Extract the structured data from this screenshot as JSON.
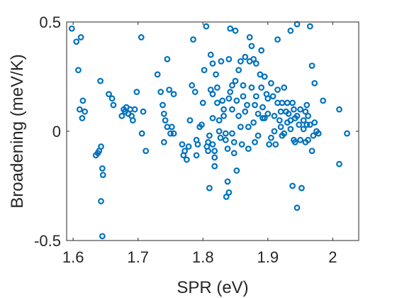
{
  "chart_data": {
    "type": "scatter",
    "xlabel": "SPR (eV)",
    "ylabel": "Broadening (meV/K)",
    "xlim": [
      1.59,
      2.04
    ],
    "ylim": [
      -0.5,
      0.5
    ],
    "x_ticks": [
      1.6,
      1.7,
      1.8,
      1.9,
      2.0
    ],
    "x_tick_labels": [
      "1.6",
      "1.7",
      "1.8",
      "1.9",
      "2"
    ],
    "y_ticks": [
      -0.5,
      0,
      0.5
    ],
    "y_tick_labels": [
      "-0.5",
      "0",
      "0.5"
    ],
    "grid": false,
    "box": true,
    "marker": "circle-open",
    "marker_color": "#0072bd",
    "axis_color": "#262626",
    "points": [
      [
        1.598,
        0.47
      ],
      [
        1.605,
        0.41
      ],
      [
        1.612,
        0.43
      ],
      [
        1.608,
        0.28
      ],
      [
        1.615,
        0.14
      ],
      [
        1.61,
        0.1
      ],
      [
        1.614,
        0.06
      ],
      [
        1.618,
        0.09
      ],
      [
        1.635,
        -0.11
      ],
      [
        1.638,
        -0.1
      ],
      [
        1.64,
        -0.09
      ],
      [
        1.643,
        -0.07
      ],
      [
        1.642,
        0.23
      ],
      [
        1.645,
        -0.17
      ],
      [
        1.646,
        -0.2
      ],
      [
        1.643,
        -0.32
      ],
      [
        1.645,
        -0.48
      ],
      [
        1.655,
        0.17
      ],
      [
        1.66,
        0.15
      ],
      [
        1.662,
        0.12
      ],
      [
        1.675,
        0.07
      ],
      [
        1.678,
        0.1
      ],
      [
        1.68,
        0.09
      ],
      [
        1.682,
        0.11
      ],
      [
        1.685,
        0.08
      ],
      [
        1.688,
        0.1
      ],
      [
        1.69,
        0.07
      ],
      [
        1.692,
        0.05
      ],
      [
        1.695,
        0.1
      ],
      [
        1.698,
        0.18
      ],
      [
        1.705,
        0.43
      ],
      [
        1.708,
        0.09
      ],
      [
        1.706,
        -0.01
      ],
      [
        1.712,
        -0.09
      ],
      [
        1.73,
        0.26
      ],
      [
        1.735,
        0.18
      ],
      [
        1.738,
        0.12
      ],
      [
        1.74,
        0.08
      ],
      [
        1.742,
        0.05
      ],
      [
        1.745,
        0.33
      ],
      [
        1.74,
        -0.05
      ],
      [
        1.748,
        0.19
      ],
      [
        1.745,
        0.02
      ],
      [
        1.752,
        0.02
      ],
      [
        1.755,
        0.17
      ],
      [
        1.75,
        -0.01
      ],
      [
        1.755,
        -0.01
      ],
      [
        1.768,
        -0.06
      ],
      [
        1.772,
        -0.09
      ],
      [
        1.77,
        -0.11
      ],
      [
        1.775,
        -0.13
      ],
      [
        1.778,
        -0.07
      ],
      [
        1.78,
        0.05
      ],
      [
        1.783,
        0.21
      ],
      [
        1.785,
        0.42
      ],
      [
        1.788,
        0.18
      ],
      [
        1.79,
        -0.04
      ],
      [
        1.792,
        -0.06
      ],
      [
        1.79,
        -0.11
      ],
      [
        1.795,
        0.02
      ],
      [
        1.798,
        0.03
      ],
      [
        1.8,
        0.13
      ],
      [
        1.802,
        0.28
      ],
      [
        1.805,
        0.48
      ],
      [
        1.806,
        -0.07
      ],
      [
        1.808,
        -0.09
      ],
      [
        1.808,
        -0.05
      ],
      [
        1.81,
        -0.02
      ],
      [
        1.81,
        -0.26
      ],
      [
        1.812,
        0.19
      ],
      [
        1.812,
        0.35
      ],
      [
        1.815,
        0.31
      ],
      [
        1.815,
        0.17
      ],
      [
        1.815,
        0.06
      ],
      [
        1.815,
        -0.06
      ],
      [
        1.818,
        -0.09
      ],
      [
        1.818,
        -0.12
      ],
      [
        1.818,
        -0.16
      ],
      [
        1.82,
        0.26
      ],
      [
        1.822,
        0.2
      ],
      [
        1.822,
        0.13
      ],
      [
        1.825,
        0.05
      ],
      [
        1.825,
        0.0
      ],
      [
        1.827,
        -0.03
      ],
      [
        1.828,
        0.32
      ],
      [
        1.83,
        0.14
      ],
      [
        1.832,
        0.1
      ],
      [
        1.832,
        0.07
      ],
      [
        1.835,
        -0.01
      ],
      [
        1.835,
        -0.04
      ],
      [
        1.838,
        -0.08
      ],
      [
        1.836,
        -0.3
      ],
      [
        1.838,
        -0.23
      ],
      [
        1.84,
        0.15
      ],
      [
        1.84,
        -0.28
      ],
      [
        1.84,
        0.33
      ],
      [
        1.842,
        0.47
      ],
      [
        1.842,
        0.18
      ],
      [
        1.845,
        0.21
      ],
      [
        1.845,
        0.1
      ],
      [
        1.845,
        -0.01
      ],
      [
        1.848,
        -0.05
      ],
      [
        1.848,
        -0.1
      ],
      [
        1.85,
        0.46
      ],
      [
        1.85,
        0.23
      ],
      [
        1.852,
        0.14
      ],
      [
        1.852,
        -0.18
      ],
      [
        1.855,
        0.28
      ],
      [
        1.855,
        0.07
      ],
      [
        1.858,
        0.02
      ],
      [
        1.858,
        0.32
      ],
      [
        1.86,
        -0.06
      ],
      [
        1.862,
        0.21
      ],
      [
        1.862,
        0.16
      ],
      [
        1.865,
        0.34
      ],
      [
        1.865,
        0.09
      ],
      [
        1.868,
        0.12
      ],
      [
        1.87,
        0.02
      ],
      [
        1.87,
        -0.08
      ],
      [
        1.872,
        0.43
      ],
      [
        1.872,
        0.32
      ],
      [
        1.875,
        0.39
      ],
      [
        1.875,
        0.2
      ],
      [
        1.878,
        0.33
      ],
      [
        1.878,
        0.04
      ],
      [
        1.88,
        0.12
      ],
      [
        1.88,
        -0.05
      ],
      [
        1.882,
        0.31
      ],
      [
        1.882,
        0.16
      ],
      [
        1.885,
        0.08
      ],
      [
        1.885,
        -0.02
      ],
      [
        1.888,
        0.26
      ],
      [
        1.89,
        0.37
      ],
      [
        1.89,
        0.2
      ],
      [
        1.892,
        0.11
      ],
      [
        1.892,
        0.06
      ],
      [
        1.895,
        0.06
      ],
      [
        1.895,
        0.25
      ],
      [
        1.898,
        0.17
      ],
      [
        1.9,
        0.15
      ],
      [
        1.9,
        0.08
      ],
      [
        1.902,
        -0.06
      ],
      [
        1.905,
        0.22
      ],
      [
        1.905,
        -0.03
      ],
      [
        1.908,
        0.16
      ],
      [
        1.91,
        0.07
      ],
      [
        1.91,
        0.0
      ],
      [
        1.912,
        -0.06
      ],
      [
        1.915,
        0.42
      ],
      [
        1.915,
        0.19
      ],
      [
        1.915,
        0.13
      ],
      [
        1.918,
        0.05
      ],
      [
        1.92,
        0.09
      ],
      [
        1.92,
        0.02
      ],
      [
        1.922,
        -0.02
      ],
      [
        1.922,
        0.13
      ],
      [
        1.925,
        0.2
      ],
      [
        1.925,
        -0.01
      ],
      [
        1.928,
        0.09
      ],
      [
        1.93,
        0.04
      ],
      [
        1.93,
        0.13
      ],
      [
        1.932,
        0.08
      ],
      [
        1.935,
        0.05
      ],
      [
        1.935,
        0.46
      ],
      [
        1.935,
        0.01
      ],
      [
        1.938,
        -0.25
      ],
      [
        1.938,
        0.13
      ],
      [
        1.94,
        -0.04
      ],
      [
        1.94,
        0.1
      ],
      [
        1.942,
        0.06
      ],
      [
        1.942,
        -0.05
      ],
      [
        1.945,
        0.49
      ],
      [
        1.945,
        -0.35
      ],
      [
        1.945,
        0.07
      ],
      [
        1.948,
        0.03
      ],
      [
        1.95,
        -0.04
      ],
      [
        1.95,
        0.1
      ],
      [
        1.952,
        -0.26
      ],
      [
        1.955,
        0.05
      ],
      [
        1.955,
        0.01
      ],
      [
        1.958,
        0.09
      ],
      [
        1.958,
        -0.05
      ],
      [
        1.96,
        0.12
      ],
      [
        1.96,
        0.03
      ],
      [
        1.962,
        0.07
      ],
      [
        1.962,
        -0.04
      ],
      [
        1.965,
        0.03
      ],
      [
        1.965,
        0.48
      ],
      [
        1.968,
        0.3
      ],
      [
        1.968,
        -0.09
      ],
      [
        1.97,
        -0.02
      ],
      [
        1.972,
        0.04
      ],
      [
        1.972,
        0.22
      ],
      [
        1.975,
        0.0
      ],
      [
        1.978,
        -0.01
      ],
      [
        1.985,
        0.14
      ],
      [
        2.01,
        0.1
      ],
      [
        2.01,
        -0.15
      ],
      [
        2.022,
        -0.01
      ]
    ]
  }
}
